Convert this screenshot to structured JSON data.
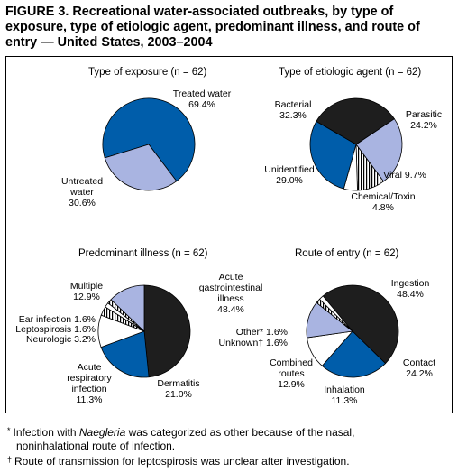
{
  "figure": {
    "title_lines": [
      "FIGURE 3. Recreational water-associated outbreaks, by type of",
      "exposure, type of etiologic agent, predominant illness, and route of",
      "entry — United States, 2003–2004"
    ]
  },
  "chart_data": [
    {
      "type": "pie",
      "title": "Type of exposure (n = 62)",
      "slices": [
        {
          "name": "Treated water",
          "value": 69.4,
          "label_lines": [
            "Treated water",
            "69.4%"
          ],
          "color": "#005DAA"
        },
        {
          "name": "Untreated water",
          "value": 30.6,
          "label_lines": [
            "Untreated",
            "water",
            "30.6%"
          ],
          "color": "#A9B4E1"
        }
      ]
    },
    {
      "type": "pie",
      "title": "Type of etiologic agent (n = 62)",
      "slices": [
        {
          "name": "Bacterial",
          "value": 32.3,
          "label_lines": [
            "Bacterial",
            "32.3%"
          ],
          "color": "#1E1E1E"
        },
        {
          "name": "Parasitic",
          "value": 24.2,
          "label_lines": [
            "Parasitic",
            "24.2%"
          ],
          "color": "#A9B4E1"
        },
        {
          "name": "Viral",
          "value": 9.7,
          "label_lines": [
            "Viral 9.7%"
          ],
          "color": "stripes"
        },
        {
          "name": "Chemical/Toxin",
          "value": 4.8,
          "label_lines": [
            "Chemical/Toxin",
            "4.8%"
          ],
          "color": "#FFFFFF"
        },
        {
          "name": "Unidentified",
          "value": 29.0,
          "label_lines": [
            "Unidentified",
            "29.0%"
          ],
          "color": "#005DAA"
        }
      ]
    },
    {
      "type": "pie",
      "title": "Predominant illness (n = 62)",
      "slices": [
        {
          "name": "Acute gastrointestinal illness",
          "value": 48.4,
          "label_lines": [
            "Acute",
            "gastrointestinal",
            "illness",
            "48.4%"
          ],
          "color": "#1E1E1E"
        },
        {
          "name": "Dermatitis",
          "value": 21.0,
          "label_lines": [
            "Dermatitis",
            "21.0%"
          ],
          "color": "#005DAA"
        },
        {
          "name": "Acute respiratory infection",
          "value": 11.3,
          "label_lines": [
            "Acute",
            "respiratory",
            "infection",
            "11.3%"
          ],
          "color": "#FFFFFF"
        },
        {
          "name": "Neurologic",
          "value": 3.2,
          "label_lines": [
            "Neurologic 3.2%"
          ],
          "color": "stripes"
        },
        {
          "name": "Leptospirosis",
          "value": 1.6,
          "label_lines": [
            "Leptospirosis 1.6%"
          ],
          "color": "#FFFFFF"
        },
        {
          "name": "Ear infection",
          "value": 1.6,
          "label_lines": [
            "Ear infection 1.6%"
          ],
          "color": "stripes"
        },
        {
          "name": "Multiple",
          "value": 12.9,
          "label_lines": [
            "Multiple",
            "12.9%"
          ],
          "color": "#A9B4E1"
        }
      ]
    },
    {
      "type": "pie",
      "title": "Route of entry (n = 62)",
      "slices": [
        {
          "name": "Ingestion",
          "value": 48.4,
          "label_lines": [
            "Ingestion",
            "48.4%"
          ],
          "color": "#1E1E1E"
        },
        {
          "name": "Contact",
          "value": 24.2,
          "label_lines": [
            "Contact",
            "24.2%"
          ],
          "color": "#005DAA"
        },
        {
          "name": "Inhalation",
          "value": 11.3,
          "label_lines": [
            "Inhalation",
            "11.3%"
          ],
          "color": "#FFFFFF"
        },
        {
          "name": "Combined routes",
          "value": 12.9,
          "label_lines": [
            "Combined",
            "routes",
            "12.9%"
          ],
          "color": "#A9B4E1"
        },
        {
          "name": "Unknown",
          "value": 1.6,
          "label_lines": [
            "Unknown† 1.6%"
          ],
          "color": "stripes"
        },
        {
          "name": "Other",
          "value": 1.6,
          "label_lines": [
            "Other* 1.6%"
          ],
          "color": "#FFFFFF"
        }
      ]
    }
  ],
  "footnotes": {
    "f1_symbol": "*",
    "f1_before": "Infection with ",
    "f1_italic": "Naegleria",
    "f1_after": " was categorized as other because of the nasal,",
    "f1_line2": "noninhalational route of infection.",
    "f2_symbol": "†",
    "f2_text": "Route of transmission for leptospirosis was unclear after investigation."
  }
}
